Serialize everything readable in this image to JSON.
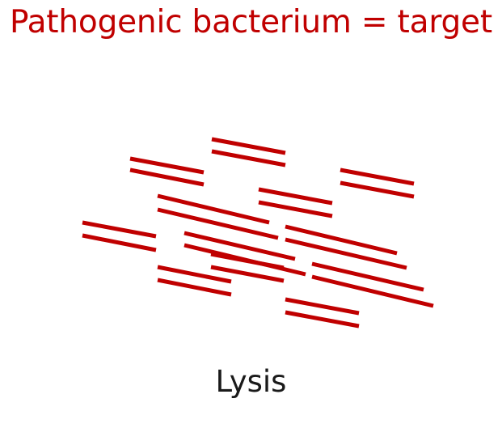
{
  "title": "Pathogenic bacterium = target",
  "caption": "Lysis",
  "colors": {
    "accent": "#c00000",
    "caption_text": "#1a1a1a"
  },
  "illustration": {
    "fragment_count": 15,
    "fragment_style": "pairs of short parallel diagonal red lines (scattered cell-wall fragments)"
  }
}
